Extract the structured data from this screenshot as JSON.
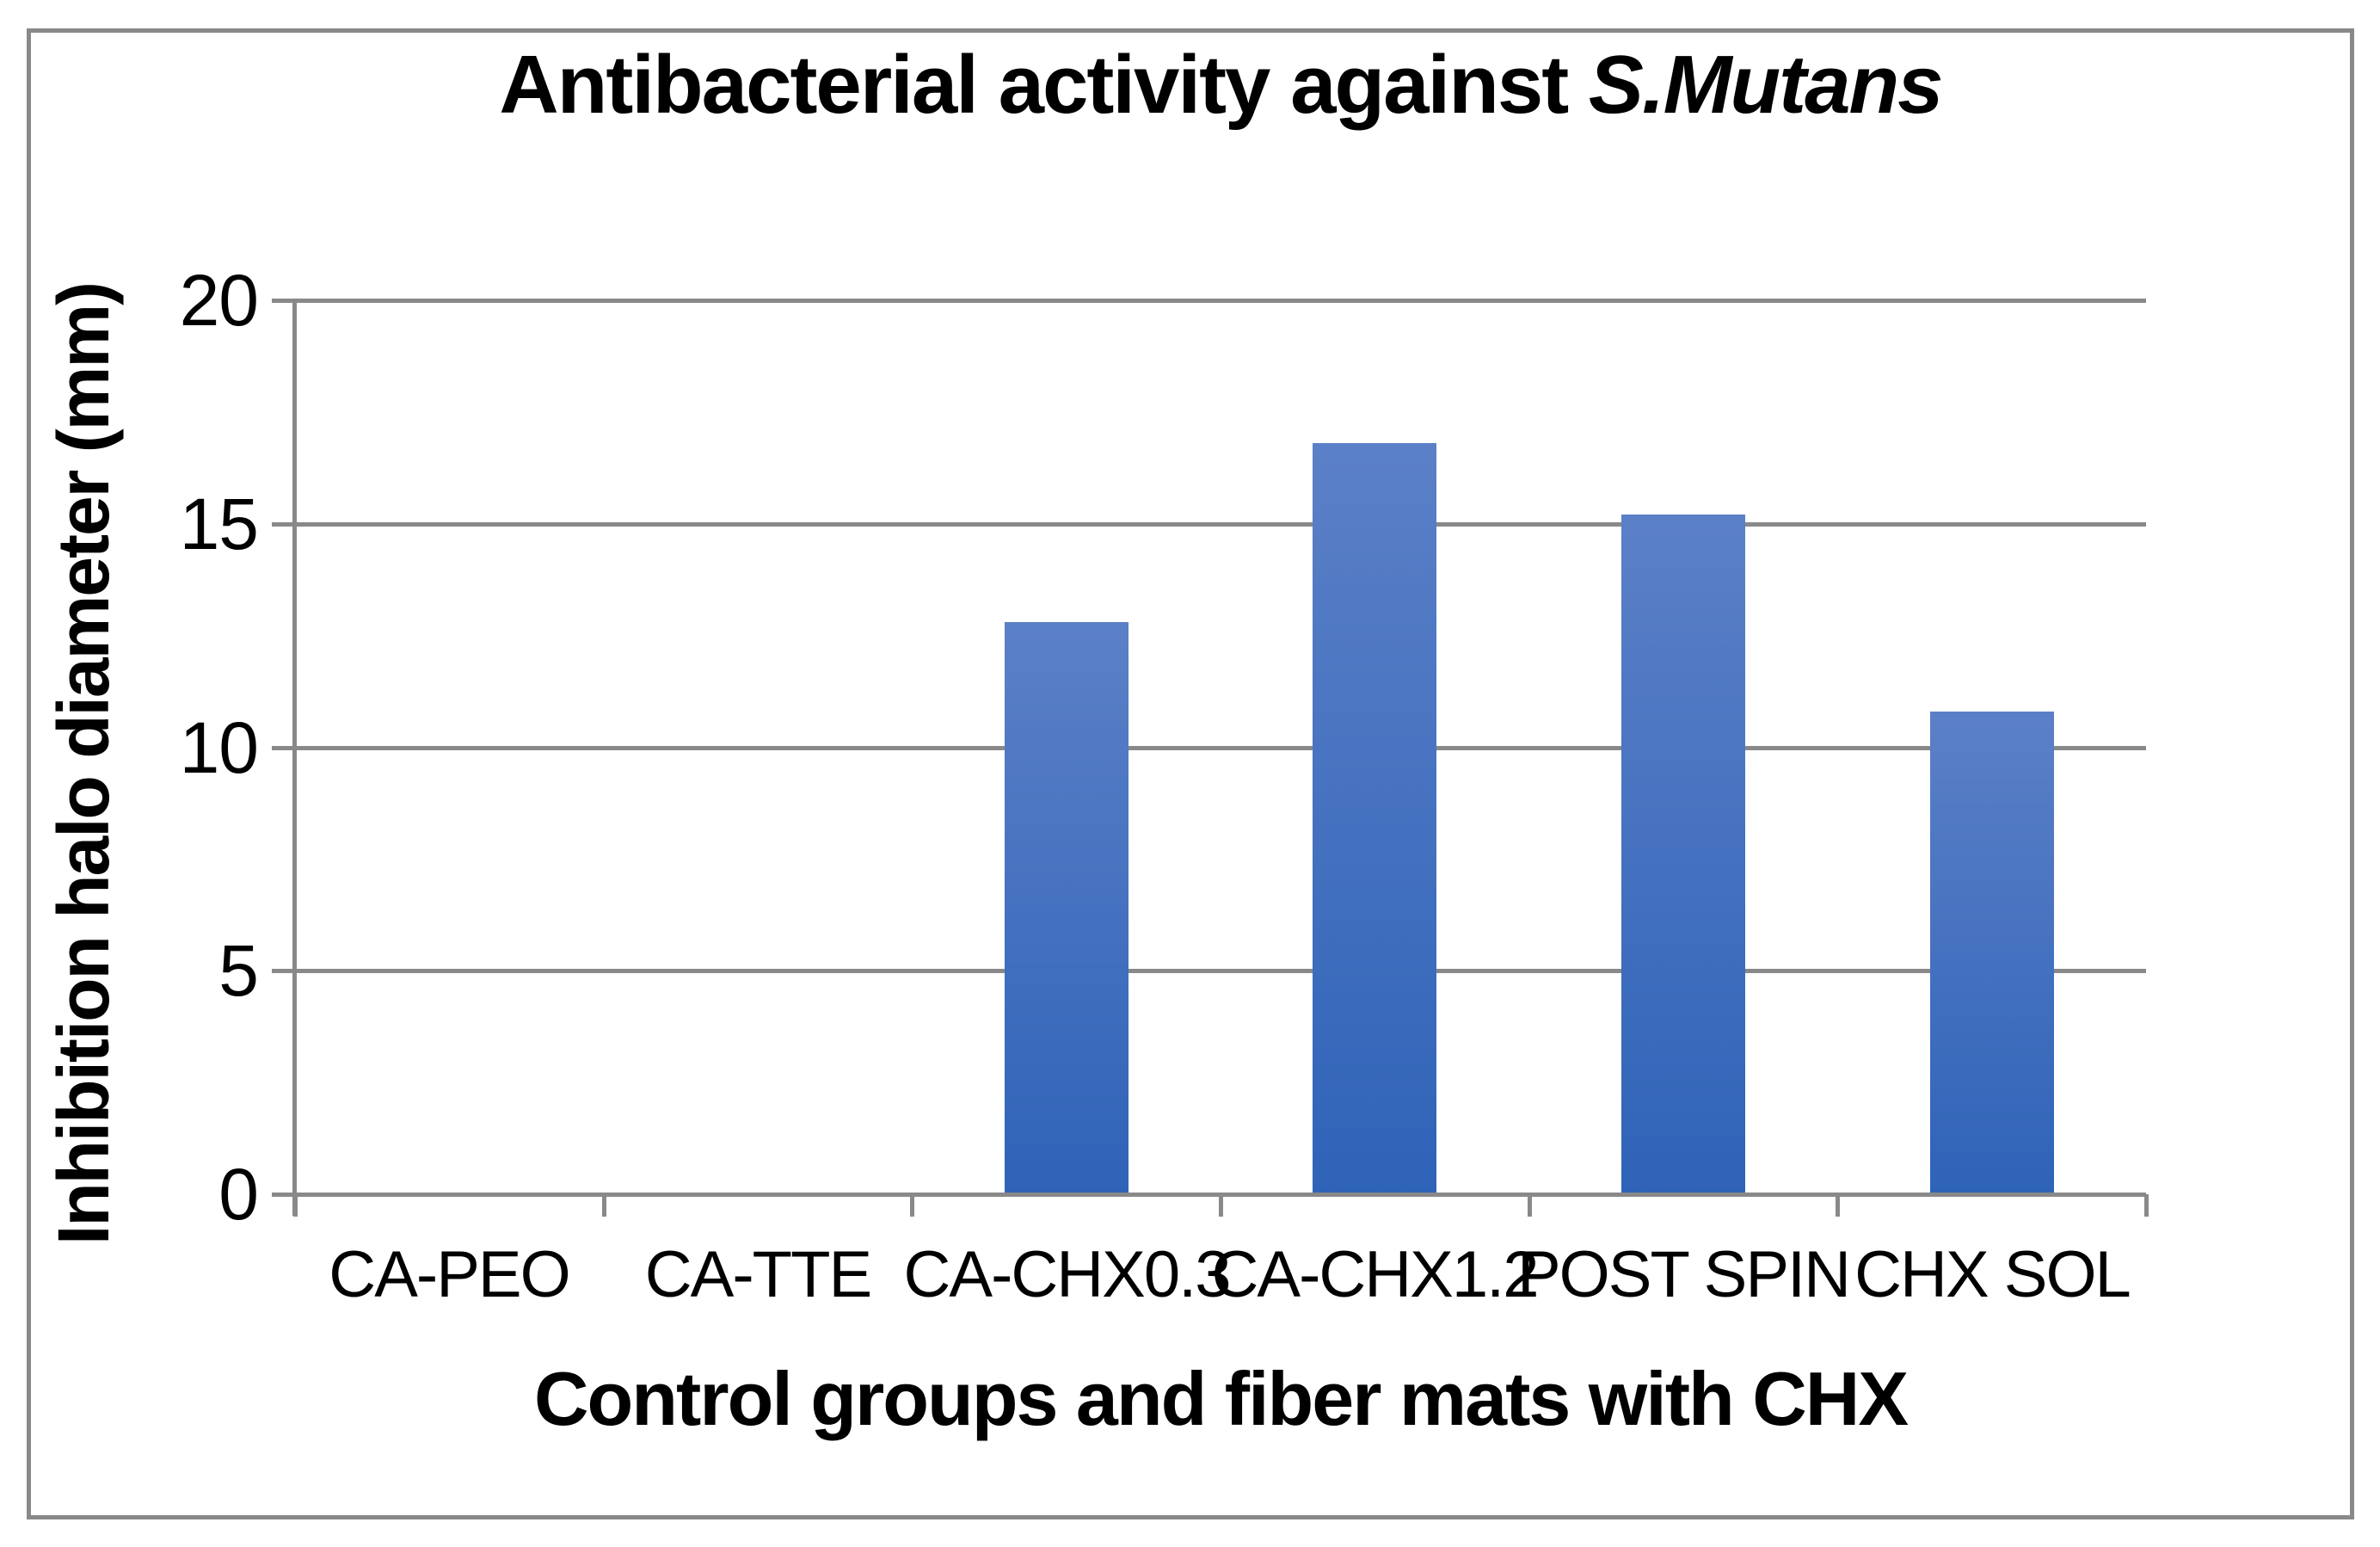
{
  "window": {
    "background": "#ffffff",
    "border_color": "#898989"
  },
  "chart_data": {
    "type": "bar",
    "title_main": "Antibacterial activity against ",
    "title_italic": "S.Mutans",
    "xlabel": "Control groups and fiber mats with CHX",
    "ylabel": "Inhibition halo diameter (mm)",
    "categories": [
      "CA-PEO",
      "CA-TTE",
      "CA-CHX0.3",
      "CA-CHX1.2",
      "POST SPIN",
      "CHX SOL"
    ],
    "values": [
      0,
      0,
      12.8,
      16.8,
      15.2,
      10.8
    ],
    "ylim": [
      0,
      20
    ],
    "yticks": [
      0,
      5,
      10,
      15,
      20
    ],
    "grid": "horizontal-on",
    "legend": "none",
    "text_color": "#000000",
    "grid_color": "#898989",
    "bar_color_top": "#5b80c7",
    "bar_color_bottom": "#2f63b8"
  }
}
